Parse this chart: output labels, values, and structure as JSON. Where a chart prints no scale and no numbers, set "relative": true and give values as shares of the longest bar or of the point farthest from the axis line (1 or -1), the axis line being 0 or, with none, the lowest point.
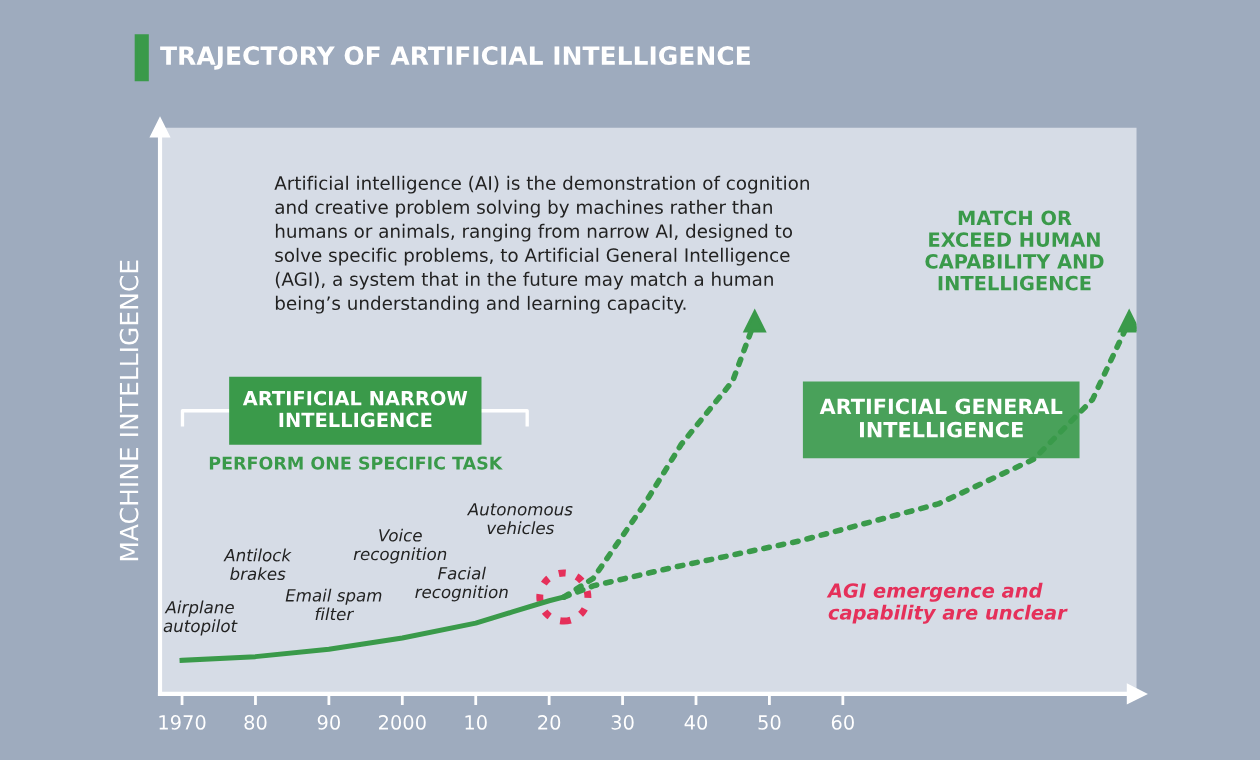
{
  "chart_data": {
    "type": "line",
    "relative": true,
    "title": "TRAJECTORY OF ARTIFICIAL INTELLIGENCE",
    "ylabel": "MACHINE INTELLIGENCE",
    "xlim": [
      1967,
      2100
    ],
    "xticks": [
      {
        "value": 1970,
        "label": "1970"
      },
      {
        "value": 1980,
        "label": "80"
      },
      {
        "value": 1990,
        "label": "90"
      },
      {
        "value": 2000,
        "label": "2000"
      },
      {
        "value": 2010,
        "label": "10"
      },
      {
        "value": 2020,
        "label": "20"
      },
      {
        "value": 2030,
        "label": "30"
      },
      {
        "value": 2040,
        "label": "40"
      },
      {
        "value": 2050,
        "label": "50"
      },
      {
        "value": 2060,
        "label": "60"
      }
    ],
    "series": [
      {
        "color": "#3a9a4a",
        "line_style": "solid",
        "x": [
          1970,
          1980,
          1990,
          2000,
          2010,
          2015,
          2020,
          2022
        ],
        "values": [
          0.09,
          0.1,
          0.12,
          0.15,
          0.19,
          0.22,
          0.25,
          0.26
        ]
      },
      {
        "color": "#3a9a4a",
        "line_style": "dotted",
        "x": [
          2022,
          2026,
          2033,
          2038,
          2045,
          2048
        ],
        "values": [
          0.26,
          0.31,
          0.51,
          0.67,
          0.84,
          1.0
        ]
      },
      {
        "color": "#3a9a4a",
        "line_style": "dotted",
        "x": [
          2022,
          2026,
          2037,
          2054,
          2073,
          2086,
          2094,
          2099
        ],
        "values": [
          0.26,
          0.29,
          0.34,
          0.41,
          0.51,
          0.63,
          0.79,
          1.0
        ]
      }
    ],
    "annotations": [
      "Artificial intelligence (AI) is the demonstration of cognition\nand creative problem solving by machines rather than\nhumans or animals, ranging from narrow AI, designed to\nsolve specific problems, to Artificial General Intelligence\n(AGI), a system that in the future may match a human\nbeing’s understanding and learning capacity.",
      "ARTIFICIAL NARROW\nINTELLIGENCE",
      "PERFORM ONE SPECIFIC TASK",
      "ARTIFICIAL GENERAL\nINTELLIGENCE",
      "MATCH OR\nEXCEED HUMAN\nCAPABILITY AND\nINTELLIGENCE",
      "AGI emergence and\ncapability are unclear",
      "Airplane\nautopilot",
      "Antilock\nbrakes",
      "Email spam\nfilter",
      "Voice\nrecognition",
      "Facial\nrecognition",
      "Autonomous\nvehicles"
    ]
  }
}
